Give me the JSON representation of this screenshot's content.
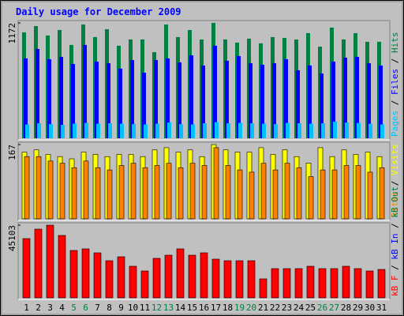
{
  "chart_data": [
    {
      "type": "bar",
      "title": "Daily usage for December 2009",
      "categories": [
        "1",
        "2",
        "3",
        "4",
        "5",
        "6",
        "7",
        "8",
        "9",
        "10",
        "11",
        "12",
        "13",
        "14",
        "15",
        "16",
        "17",
        "18",
        "19",
        "20",
        "21",
        "22",
        "23",
        "24",
        "25",
        "26",
        "27",
        "28",
        "29",
        "30",
        "31"
      ],
      "ylim": [
        0,
        1172
      ],
      "yticks": [
        1172
      ],
      "legend_separator": " / ",
      "series": [
        {
          "name": "Hits",
          "color": "#008040",
          "values": [
            1076,
            1140,
            1044,
            1100,
            948,
            1156,
            1028,
            1108,
            940,
            1004,
            1004,
            875,
            1156,
            1028,
            1100,
            1004,
            1172,
            1004,
            972,
            1012,
            964,
            1028,
            1020,
            1004,
            1068,
            931,
            1124,
            1004,
            1068,
            980,
            980
          ]
        },
        {
          "name": "Files",
          "color": "#0000ff",
          "values": [
            811,
            907,
            803,
            827,
            755,
            948,
            779,
            763,
            707,
            795,
            666,
            795,
            811,
            771,
            843,
            739,
            940,
            787,
            835,
            763,
            747,
            763,
            803,
            691,
            739,
            658,
            779,
            819,
            827,
            763,
            739
          ]
        },
        {
          "name": "Pages",
          "color": "#00c0ff",
          "values": [
            140,
            152,
            144,
            136,
            148,
            156,
            148,
            152,
            148,
            144,
            140,
            148,
            160,
            144,
            140,
            152,
            164,
            152,
            156,
            152,
            148,
            144,
            156,
            152,
            148,
            152,
            168,
            160,
            156,
            148,
            140
          ]
        }
      ]
    },
    {
      "type": "bar",
      "categories": [
        "1",
        "2",
        "3",
        "4",
        "5",
        "6",
        "7",
        "8",
        "9",
        "10",
        "11",
        "12",
        "13",
        "14",
        "15",
        "16",
        "17",
        "18",
        "19",
        "20",
        "21",
        "22",
        "23",
        "24",
        "25",
        "26",
        "27",
        "28",
        "29",
        "30",
        "31"
      ],
      "ylim": [
        0,
        167
      ],
      "yticks": [
        167
      ],
      "legend_separator": " / ",
      "series": [
        {
          "name": "Visits",
          "color": "#ffff00",
          "values": [
            150,
            155,
            145,
            140,
            135,
            150,
            145,
            140,
            145,
            145,
            140,
            155,
            160,
            150,
            155,
            140,
            167,
            155,
            150,
            150,
            160,
            145,
            155,
            140,
            125,
            160,
            140,
            155,
            145,
            150,
            140
          ]
        },
        {
          "name": "Sites",
          "color": "#ff8000",
          "values": [
            140,
            140,
            130,
            125,
            115,
            130,
            115,
            110,
            120,
            125,
            115,
            120,
            125,
            115,
            125,
            120,
            160,
            120,
            110,
            105,
            125,
            110,
            125,
            115,
            95,
            110,
            110,
            120,
            120,
            105,
            115
          ]
        }
      ]
    },
    {
      "type": "bar",
      "categories": [
        "1",
        "2",
        "3",
        "4",
        "5",
        "6",
        "7",
        "8",
        "9",
        "10",
        "11",
        "12",
        "13",
        "14",
        "15",
        "16",
        "17",
        "18",
        "19",
        "20",
        "21",
        "22",
        "23",
        "24",
        "25",
        "26",
        "27",
        "28",
        "29",
        "30",
        "31"
      ],
      "category_colors": [
        "#000000",
        "#000000",
        "#000000",
        "#000000",
        "#008040",
        "#008040",
        "#000000",
        "#000000",
        "#000000",
        "#000000",
        "#000000",
        "#008040",
        "#008040",
        "#000000",
        "#000000",
        "#000000",
        "#000000",
        "#000000",
        "#008040",
        "#008040",
        "#000000",
        "#000000",
        "#000000",
        "#000000",
        "#000000",
        "#008040",
        "#008040",
        "#000000",
        "#000000",
        "#000000",
        "#000000"
      ],
      "ylim": [
        0,
        45103
      ],
      "yticks": [
        45103
      ],
      "legend_separator": " / ",
      "series": [
        {
          "name": "kB F",
          "color": "#ff0000",
          "values": [
            36770,
            42650,
            45103,
            38730,
            29410,
            30400,
            27940,
            23040,
            25490,
            19610,
            16670,
            24510,
            26470,
            30400,
            26470,
            27940,
            24020,
            23040,
            23040,
            23040,
            11770,
            18140,
            18140,
            18140,
            19610,
            18140,
            18140,
            19610,
            18140,
            16670,
            17650
          ]
        }
      ],
      "extra_legend": [
        {
          "name": "kB In",
          "color": "#0000ff"
        },
        {
          "name": "kB Out",
          "color": "#008040"
        }
      ]
    }
  ]
}
